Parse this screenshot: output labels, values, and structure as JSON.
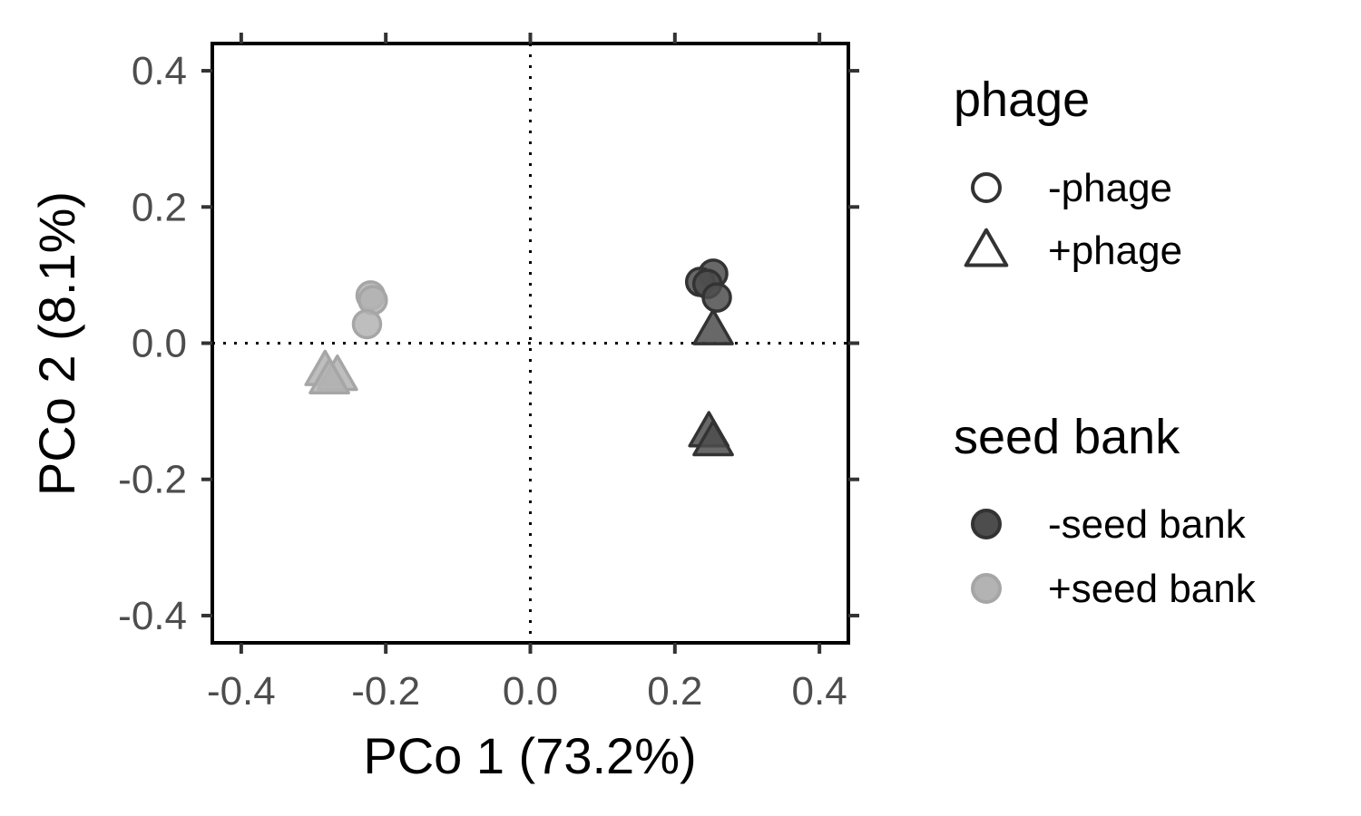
{
  "chart_data": {
    "type": "scatter",
    "title": "",
    "xlabel": "PCo 1 (73.2%)",
    "ylabel": "PCo 2 (8.1%)",
    "xlim": [
      -0.44,
      0.44
    ],
    "ylim": [
      -0.44,
      0.44
    ],
    "x_ticks": [
      -0.4,
      -0.2,
      0.0,
      0.2,
      0.4
    ],
    "y_ticks": [
      -0.4,
      -0.2,
      0.0,
      0.2,
      0.4
    ],
    "x_tick_labels": [
      "-0.4",
      "-0.2",
      "0.0",
      "0.2",
      "0.4"
    ],
    "y_tick_labels": [
      "-0.4",
      "-0.2",
      "0.0",
      "0.2",
      "0.4"
    ],
    "reference_lines": {
      "x": 0,
      "y": 0,
      "style": "dotted"
    },
    "grid": false,
    "legend_position": "right",
    "legends": [
      {
        "title": "phage",
        "entries": [
          {
            "label": "-phage",
            "shape": "circle"
          },
          {
            "label": "+phage",
            "shape": "triangle"
          }
        ]
      },
      {
        "title": "seed bank",
        "entries": [
          {
            "label": "-seed bank",
            "color": "#4d4d4d"
          },
          {
            "label": "+seed bank",
            "color": "#b3b3b3"
          }
        ]
      }
    ],
    "series": [
      {
        "phage": "-phage",
        "seed_bank": "-seed bank",
        "shape": "circle",
        "color": "#4d4d4d",
        "points": [
          [
            0.253,
            0.102
          ],
          [
            0.235,
            0.09
          ],
          [
            0.245,
            0.087
          ],
          [
            0.258,
            0.067
          ]
        ]
      },
      {
        "phage": "+phage",
        "seed_bank": "-seed bank",
        "shape": "triangle",
        "color": "#4d4d4d",
        "points": [
          [
            0.253,
            0.02
          ],
          [
            0.247,
            -0.13
          ],
          [
            0.253,
            -0.143
          ]
        ]
      },
      {
        "phage": "-phage",
        "seed_bank": "+seed bank",
        "shape": "circle",
        "color": "#b3b3b3",
        "points": [
          [
            -0.221,
            0.07
          ],
          [
            -0.218,
            0.063
          ],
          [
            -0.226,
            0.028
          ]
        ]
      },
      {
        "phage": "+phage",
        "seed_bank": "+seed bank",
        "shape": "triangle",
        "color": "#b3b3b3",
        "points": [
          [
            -0.284,
            -0.04
          ],
          [
            -0.267,
            -0.047
          ],
          [
            -0.278,
            -0.052
          ]
        ]
      }
    ]
  }
}
